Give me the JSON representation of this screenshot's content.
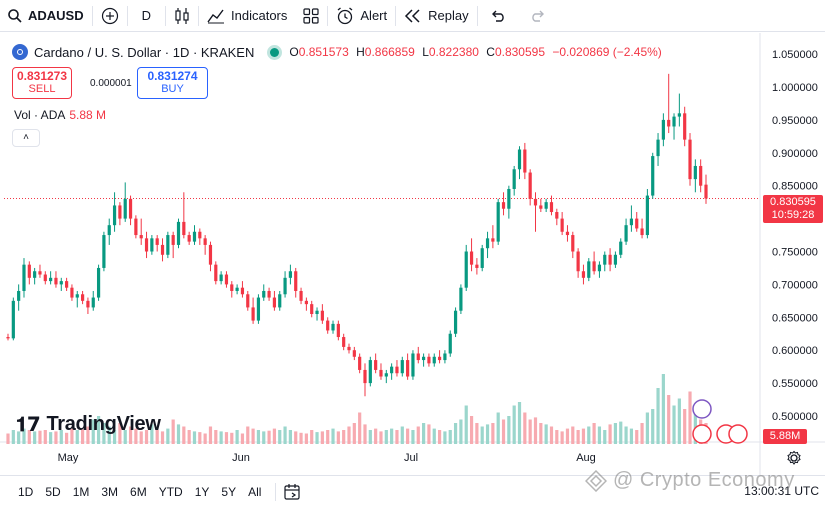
{
  "toolbar": {
    "symbol": "ADAUSD",
    "interval": "D",
    "indicators_label": "Indicators",
    "alert_label": "Alert",
    "replay_label": "Replay"
  },
  "legend": {
    "title": "Cardano / U. S. Dollar · 1D · KRAKEN",
    "open_label": "O",
    "open": "0.851573",
    "high_label": "H",
    "high": "0.866859",
    "low_label": "L",
    "low": "0.822380",
    "close_label": "C",
    "close": "0.830595",
    "change": "−0.020869 (−2.45%)"
  },
  "trade": {
    "sell_price": "0.831273",
    "sell_label": "SELL",
    "spread": "0.000001",
    "buy_price": "0.831274",
    "buy_label": "BUY"
  },
  "volume_legend": {
    "label": "Vol · ADA",
    "value": "5.88 M",
    "collapse": "˄"
  },
  "price_tag": {
    "price": "0.830595",
    "countdown": "10:59:28"
  },
  "volume_tag": "5.88M",
  "watermark": "TradingView",
  "bottom": {
    "ranges": [
      "1D",
      "5D",
      "1M",
      "3M",
      "6M",
      "YTD",
      "1Y",
      "5Y",
      "All"
    ],
    "clock": "13:00:31 UTC"
  },
  "credit": "@ Crypto Economy",
  "colors": {
    "up": "#089981",
    "down": "#f23645",
    "up_vol": "#9bd6cc",
    "down_vol": "#f7aab0"
  },
  "chart_data": {
    "type": "candlestick",
    "y_ticks": [
      "1.050000",
      "1.000000",
      "0.950000",
      "0.900000",
      "0.850000",
      "0.800000",
      "0.750000",
      "0.700000",
      "0.650000",
      "0.600000",
      "0.550000",
      "0.500000"
    ],
    "x_ticks": [
      "May",
      "Jun",
      "Jul",
      "Aug"
    ],
    "ylim": [
      0.5,
      1.05
    ],
    "last_price": 0.830595,
    "candles_ohlc": [
      [
        0.62,
        0.625,
        0.615,
        0.618
      ],
      [
        0.618,
        0.68,
        0.615,
        0.675
      ],
      [
        0.675,
        0.7,
        0.66,
        0.69
      ],
      [
        0.69,
        0.74,
        0.68,
        0.73
      ],
      [
        0.73,
        0.735,
        0.7,
        0.71
      ],
      [
        0.71,
        0.725,
        0.7,
        0.72
      ],
      [
        0.72,
        0.73,
        0.71,
        0.715
      ],
      [
        0.715,
        0.72,
        0.7,
        0.705
      ],
      [
        0.705,
        0.72,
        0.7,
        0.71
      ],
      [
        0.71,
        0.72,
        0.695,
        0.7
      ],
      [
        0.7,
        0.71,
        0.69,
        0.705
      ],
      [
        0.705,
        0.71,
        0.69,
        0.695
      ],
      [
        0.695,
        0.7,
        0.675,
        0.68
      ],
      [
        0.68,
        0.69,
        0.665,
        0.685
      ],
      [
        0.685,
        0.69,
        0.67,
        0.675
      ],
      [
        0.675,
        0.68,
        0.655,
        0.665
      ],
      [
        0.665,
        0.69,
        0.66,
        0.68
      ],
      [
        0.68,
        0.73,
        0.675,
        0.725
      ],
      [
        0.725,
        0.78,
        0.72,
        0.775
      ],
      [
        0.775,
        0.8,
        0.76,
        0.79
      ],
      [
        0.79,
        0.84,
        0.78,
        0.82
      ],
      [
        0.82,
        0.825,
        0.79,
        0.8
      ],
      [
        0.8,
        0.855,
        0.795,
        0.83
      ],
      [
        0.83,
        0.835,
        0.79,
        0.8
      ],
      [
        0.8,
        0.805,
        0.77,
        0.775
      ],
      [
        0.775,
        0.8,
        0.76,
        0.77
      ],
      [
        0.77,
        0.78,
        0.74,
        0.75
      ],
      [
        0.75,
        0.775,
        0.745,
        0.77
      ],
      [
        0.77,
        0.775,
        0.75,
        0.76
      ],
      [
        0.76,
        0.77,
        0.735,
        0.745
      ],
      [
        0.745,
        0.78,
        0.74,
        0.775
      ],
      [
        0.775,
        0.78,
        0.74,
        0.76
      ],
      [
        0.76,
        0.8,
        0.755,
        0.795
      ],
      [
        0.795,
        0.84,
        0.77,
        0.775
      ],
      [
        0.775,
        0.78,
        0.76,
        0.765
      ],
      [
        0.765,
        0.79,
        0.76,
        0.78
      ],
      [
        0.78,
        0.785,
        0.76,
        0.77
      ],
      [
        0.77,
        0.775,
        0.745,
        0.76
      ],
      [
        0.76,
        0.765,
        0.72,
        0.73
      ],
      [
        0.73,
        0.735,
        0.7,
        0.705
      ],
      [
        0.705,
        0.72,
        0.7,
        0.715
      ],
      [
        0.715,
        0.72,
        0.695,
        0.7
      ],
      [
        0.7,
        0.705,
        0.68,
        0.69
      ],
      [
        0.69,
        0.7,
        0.685,
        0.695
      ],
      [
        0.695,
        0.705,
        0.68,
        0.685
      ],
      [
        0.685,
        0.69,
        0.66,
        0.665
      ],
      [
        0.665,
        0.68,
        0.64,
        0.645
      ],
      [
        0.645,
        0.685,
        0.64,
        0.68
      ],
      [
        0.68,
        0.7,
        0.675,
        0.69
      ],
      [
        0.69,
        0.695,
        0.675,
        0.68
      ],
      [
        0.68,
        0.69,
        0.66,
        0.665
      ],
      [
        0.665,
        0.69,
        0.66,
        0.685
      ],
      [
        0.685,
        0.72,
        0.68,
        0.71
      ],
      [
        0.71,
        0.73,
        0.7,
        0.72
      ],
      [
        0.72,
        0.725,
        0.68,
        0.69
      ],
      [
        0.69,
        0.695,
        0.67,
        0.675
      ],
      [
        0.675,
        0.68,
        0.66,
        0.67
      ],
      [
        0.67,
        0.675,
        0.65,
        0.655
      ],
      [
        0.655,
        0.665,
        0.645,
        0.66
      ],
      [
        0.66,
        0.67,
        0.64,
        0.645
      ],
      [
        0.645,
        0.65,
        0.625,
        0.63
      ],
      [
        0.63,
        0.645,
        0.625,
        0.64
      ],
      [
        0.64,
        0.645,
        0.615,
        0.62
      ],
      [
        0.62,
        0.625,
        0.6,
        0.605
      ],
      [
        0.605,
        0.61,
        0.595,
        0.6
      ],
      [
        0.6,
        0.605,
        0.585,
        0.59
      ],
      [
        0.59,
        0.595,
        0.565,
        0.57
      ],
      [
        0.57,
        0.58,
        0.53,
        0.55
      ],
      [
        0.55,
        0.59,
        0.545,
        0.585
      ],
      [
        0.585,
        0.595,
        0.565,
        0.57
      ],
      [
        0.57,
        0.58,
        0.555,
        0.56
      ],
      [
        0.56,
        0.57,
        0.55,
        0.565
      ],
      [
        0.565,
        0.58,
        0.555,
        0.575
      ],
      [
        0.575,
        0.585,
        0.56,
        0.565
      ],
      [
        0.565,
        0.59,
        0.56,
        0.585
      ],
      [
        0.585,
        0.595,
        0.555,
        0.56
      ],
      [
        0.56,
        0.6,
        0.555,
        0.595
      ],
      [
        0.595,
        0.605,
        0.58,
        0.585
      ],
      [
        0.585,
        0.595,
        0.575,
        0.59
      ],
      [
        0.59,
        0.595,
        0.575,
        0.58
      ],
      [
        0.58,
        0.595,
        0.575,
        0.59
      ],
      [
        0.59,
        0.6,
        0.58,
        0.585
      ],
      [
        0.585,
        0.6,
        0.58,
        0.595
      ],
      [
        0.595,
        0.63,
        0.59,
        0.625
      ],
      [
        0.625,
        0.665,
        0.62,
        0.66
      ],
      [
        0.66,
        0.7,
        0.655,
        0.695
      ],
      [
        0.695,
        0.76,
        0.69,
        0.75
      ],
      [
        0.75,
        0.77,
        0.72,
        0.73
      ],
      [
        0.73,
        0.74,
        0.715,
        0.725
      ],
      [
        0.725,
        0.76,
        0.72,
        0.755
      ],
      [
        0.755,
        0.78,
        0.74,
        0.77
      ],
      [
        0.77,
        0.79,
        0.755,
        0.765
      ],
      [
        0.765,
        0.83,
        0.76,
        0.825
      ],
      [
        0.825,
        0.84,
        0.805,
        0.815
      ],
      [
        0.815,
        0.85,
        0.8,
        0.845
      ],
      [
        0.845,
        0.88,
        0.835,
        0.875
      ],
      [
        0.875,
        0.91,
        0.86,
        0.905
      ],
      [
        0.905,
        0.915,
        0.86,
        0.87
      ],
      [
        0.87,
        0.875,
        0.82,
        0.83
      ],
      [
        0.83,
        0.84,
        0.78,
        0.82
      ],
      [
        0.82,
        0.83,
        0.81,
        0.815
      ],
      [
        0.815,
        0.83,
        0.81,
        0.825
      ],
      [
        0.825,
        0.835,
        0.805,
        0.81
      ],
      [
        0.81,
        0.815,
        0.79,
        0.8
      ],
      [
        0.8,
        0.81,
        0.775,
        0.78
      ],
      [
        0.78,
        0.79,
        0.765,
        0.775
      ],
      [
        0.775,
        0.78,
        0.74,
        0.75
      ],
      [
        0.75,
        0.755,
        0.71,
        0.72
      ],
      [
        0.72,
        0.73,
        0.7,
        0.71
      ],
      [
        0.71,
        0.74,
        0.705,
        0.735
      ],
      [
        0.735,
        0.75,
        0.715,
        0.72
      ],
      [
        0.72,
        0.735,
        0.71,
        0.73
      ],
      [
        0.73,
        0.75,
        0.72,
        0.745
      ],
      [
        0.745,
        0.755,
        0.72,
        0.73
      ],
      [
        0.73,
        0.75,
        0.725,
        0.745
      ],
      [
        0.745,
        0.77,
        0.74,
        0.765
      ],
      [
        0.765,
        0.8,
        0.76,
        0.79
      ],
      [
        0.79,
        0.82,
        0.78,
        0.8
      ],
      [
        0.8,
        0.81,
        0.78,
        0.785
      ],
      [
        0.785,
        0.8,
        0.77,
        0.775
      ],
      [
        0.775,
        0.845,
        0.77,
        0.835
      ],
      [
        0.835,
        0.9,
        0.83,
        0.895
      ],
      [
        0.895,
        0.93,
        0.88,
        0.92
      ],
      [
        0.92,
        0.96,
        0.91,
        0.95
      ],
      [
        0.95,
        1.02,
        0.93,
        0.94
      ],
      [
        0.94,
        0.96,
        0.92,
        0.955
      ],
      [
        0.955,
        0.99,
        0.94,
        0.96
      ],
      [
        0.96,
        0.97,
        0.91,
        0.92
      ],
      [
        0.92,
        0.93,
        0.85,
        0.86
      ],
      [
        0.86,
        0.89,
        0.84,
        0.88
      ],
      [
        0.88,
        0.89,
        0.84,
        0.85
      ],
      [
        0.851573,
        0.866859,
        0.82238,
        0.830595
      ]
    ],
    "volume_relative": [
      0.15,
      0.2,
      0.18,
      0.22,
      0.2,
      0.18,
      0.19,
      0.2,
      0.17,
      0.18,
      0.2,
      0.16,
      0.22,
      0.2,
      0.21,
      0.25,
      0.35,
      0.4,
      0.3,
      0.25,
      0.2,
      0.3,
      0.2,
      0.25,
      0.22,
      0.18,
      0.2,
      0.28,
      0.2,
      0.18,
      0.22,
      0.35,
      0.28,
      0.25,
      0.2,
      0.18,
      0.17,
      0.15,
      0.25,
      0.2,
      0.18,
      0.17,
      0.16,
      0.2,
      0.15,
      0.25,
      0.22,
      0.2,
      0.18,
      0.19,
      0.22,
      0.2,
      0.25,
      0.2,
      0.18,
      0.16,
      0.15,
      0.2,
      0.17,
      0.18,
      0.2,
      0.22,
      0.18,
      0.2,
      0.25,
      0.3,
      0.45,
      0.28,
      0.2,
      0.22,
      0.18,
      0.2,
      0.22,
      0.2,
      0.25,
      0.22,
      0.2,
      0.25,
      0.3,
      0.28,
      0.22,
      0.2,
      0.18,
      0.2,
      0.3,
      0.35,
      0.55,
      0.4,
      0.3,
      0.25,
      0.28,
      0.3,
      0.45,
      0.35,
      0.4,
      0.55,
      0.6,
      0.45,
      0.35,
      0.38,
      0.3,
      0.28,
      0.25,
      0.2,
      0.18,
      0.22,
      0.25,
      0.2,
      0.22,
      0.25,
      0.3,
      0.25,
      0.2,
      0.28,
      0.3,
      0.32,
      0.25,
      0.22,
      0.2,
      0.3,
      0.45,
      0.5,
      0.8,
      1.0,
      0.7,
      0.55,
      0.65,
      0.5,
      0.75,
      0.45,
      0.35,
      0.3
    ]
  }
}
